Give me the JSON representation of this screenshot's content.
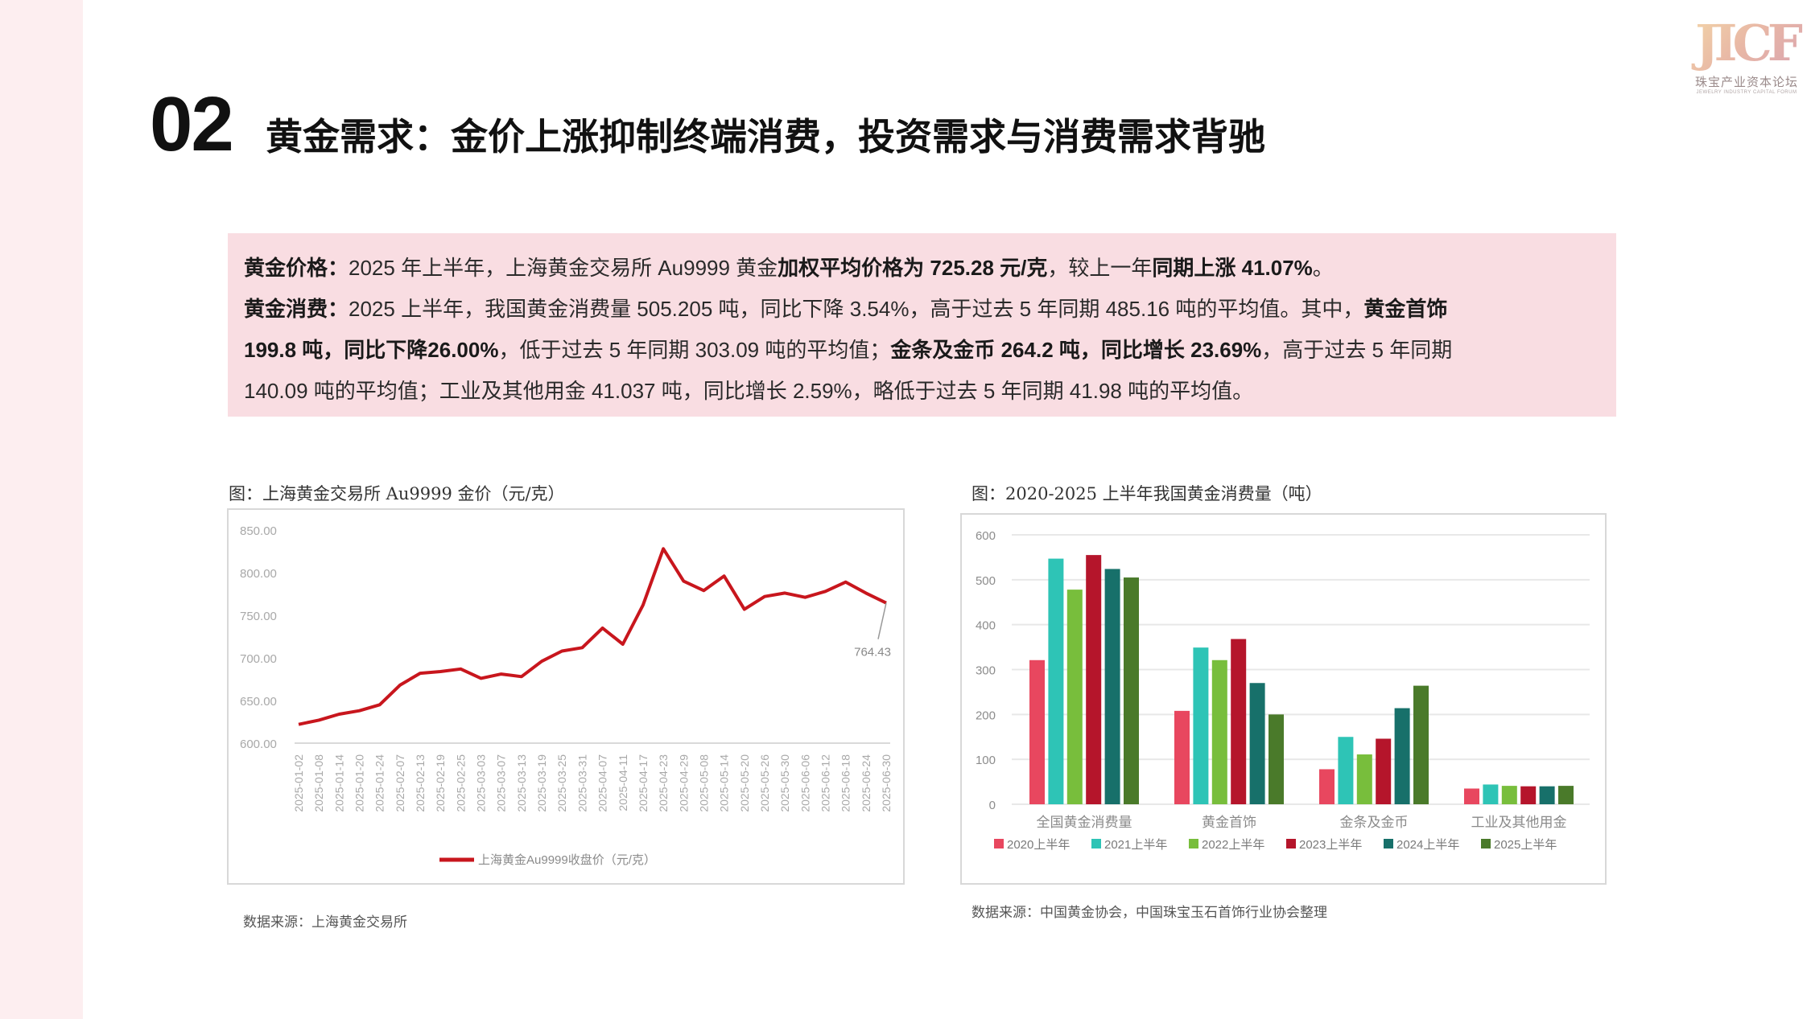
{
  "header": {
    "section_number": "02",
    "title": "黄金需求：金价上涨抑制终端消费，投资需求与消费需求背驰"
  },
  "logo": {
    "mark": "JICF",
    "cn_text": "珠宝产业资本论坛",
    "en_text": "JEWELRY INDUSTRY CAPITAL FORUM"
  },
  "summary": {
    "price_label": "黄金价格：",
    "price_text_1": "2025 年上半年，上海黄金交易所 Au9999 黄金",
    "price_bold_1": "加权平均价格为 725.28 元/克",
    "price_text_2": "，较上一年",
    "price_bold_2": "同期上涨 41.07%",
    "price_text_3": "。",
    "consumption_label": "黄金消费：",
    "consumption_text_1": "2025 上半年，我国黄金消费量 505.205 吨，同比下降 3.54%，高于过去 5 年同期 485.16 吨的平均值。其中，",
    "consumption_bold_1": "黄金首饰",
    "line3_bold_1": "199.8 吨，同比下降26.00%",
    "line3_text_1": "，低于过去 5 年同期 303.09 吨的平均值；",
    "line3_bold_2": "金条及金币 264.2 吨，同比增长 23.69%",
    "line3_text_2": "，高于过去 5 年同期",
    "line4_text": "140.09 吨的平均值；工业及其他用金 41.037 吨，同比增长 2.59%，略低于过去 5 年同期 41.98 吨的平均值。"
  },
  "left_chart": {
    "caption": "图：上海黄金交易所 Au9999 金价（元/克）",
    "source": "数据来源：上海黄金交易所",
    "line_color": "#c8161d"
  },
  "right_chart": {
    "caption": "图：2020-2025 上半年我国黄金消费量（吨）",
    "source": "数据来源：中国黄金协会，中国珠宝玉石首饰行业协会整理"
  },
  "chart_data": [
    {
      "type": "line",
      "title": "上海黄金交易所 Au9999 金价（元/克）",
      "xlabel": "",
      "ylabel": "元/克",
      "ylim": [
        600,
        850
      ],
      "yticks": [
        "600.00",
        "650.00",
        "700.00",
        "750.00",
        "800.00",
        "850.00"
      ],
      "grid": false,
      "legend_position": "bottom",
      "x": [
        "2025-01-02",
        "2025-01-08",
        "2025-01-14",
        "2025-01-20",
        "2025-01-24",
        "2025-02-07",
        "2025-02-13",
        "2025-02-19",
        "2025-02-25",
        "2025-03-03",
        "2025-03-07",
        "2025-03-13",
        "2025-03-19",
        "2025-03-25",
        "2025-03-31",
        "2025-04-07",
        "2025-04-11",
        "2025-04-17",
        "2025-04-23",
        "2025-04-29",
        "2025-05-08",
        "2025-05-14",
        "2025-05-20",
        "2025-05-26",
        "2025-05-30",
        "2025-06-06",
        "2025-06-12",
        "2025-06-18",
        "2025-06-24",
        "2025-06-30"
      ],
      "series": [
        {
          "name": "上海黄金Au9999收盘价（元/克）",
          "values": [
            622,
            627,
            634,
            638,
            645,
            668,
            682,
            684,
            687,
            676,
            681,
            678,
            696,
            708,
            712,
            735,
            716,
            762,
            828,
            790,
            779,
            796,
            757,
            772,
            776,
            771,
            778,
            789,
            776,
            764.43
          ]
        }
      ],
      "annotations": [
        {
          "x": "2025-06-30",
          "label": "764.43"
        }
      ]
    },
    {
      "type": "bar",
      "title": "2020-2025 上半年我国黄金消费量（吨）",
      "xlabel": "",
      "ylabel": "吨",
      "ylim": [
        0,
        600
      ],
      "yticks": [
        "0",
        "100",
        "200",
        "300",
        "400",
        "500",
        "600"
      ],
      "grid": true,
      "legend_position": "bottom",
      "categories": [
        "全国黄金消费量",
        "黄金首饰",
        "金条及金币",
        "工业及其他用金"
      ],
      "series": [
        {
          "name": "2020上半年",
          "color": "#e8475f",
          "values": [
            321,
            208,
            78,
            35
          ]
        },
        {
          "name": "2021上半年",
          "color": "#2ec4b6",
          "values": [
            547,
            349,
            150,
            44
          ]
        },
        {
          "name": "2022上半年",
          "color": "#78be3c",
          "values": [
            478,
            321,
            111,
            41
          ]
        },
        {
          "name": "2023上半年",
          "color": "#b5152b",
          "values": [
            555,
            368,
            146,
            40
          ]
        },
        {
          "name": "2024上半年",
          "color": "#17706a",
          "values": [
            524,
            270,
            214,
            40
          ]
        },
        {
          "name": "2025上半年",
          "color": "#4a7a2a",
          "values": [
            505,
            200,
            264,
            41
          ]
        }
      ]
    }
  ]
}
